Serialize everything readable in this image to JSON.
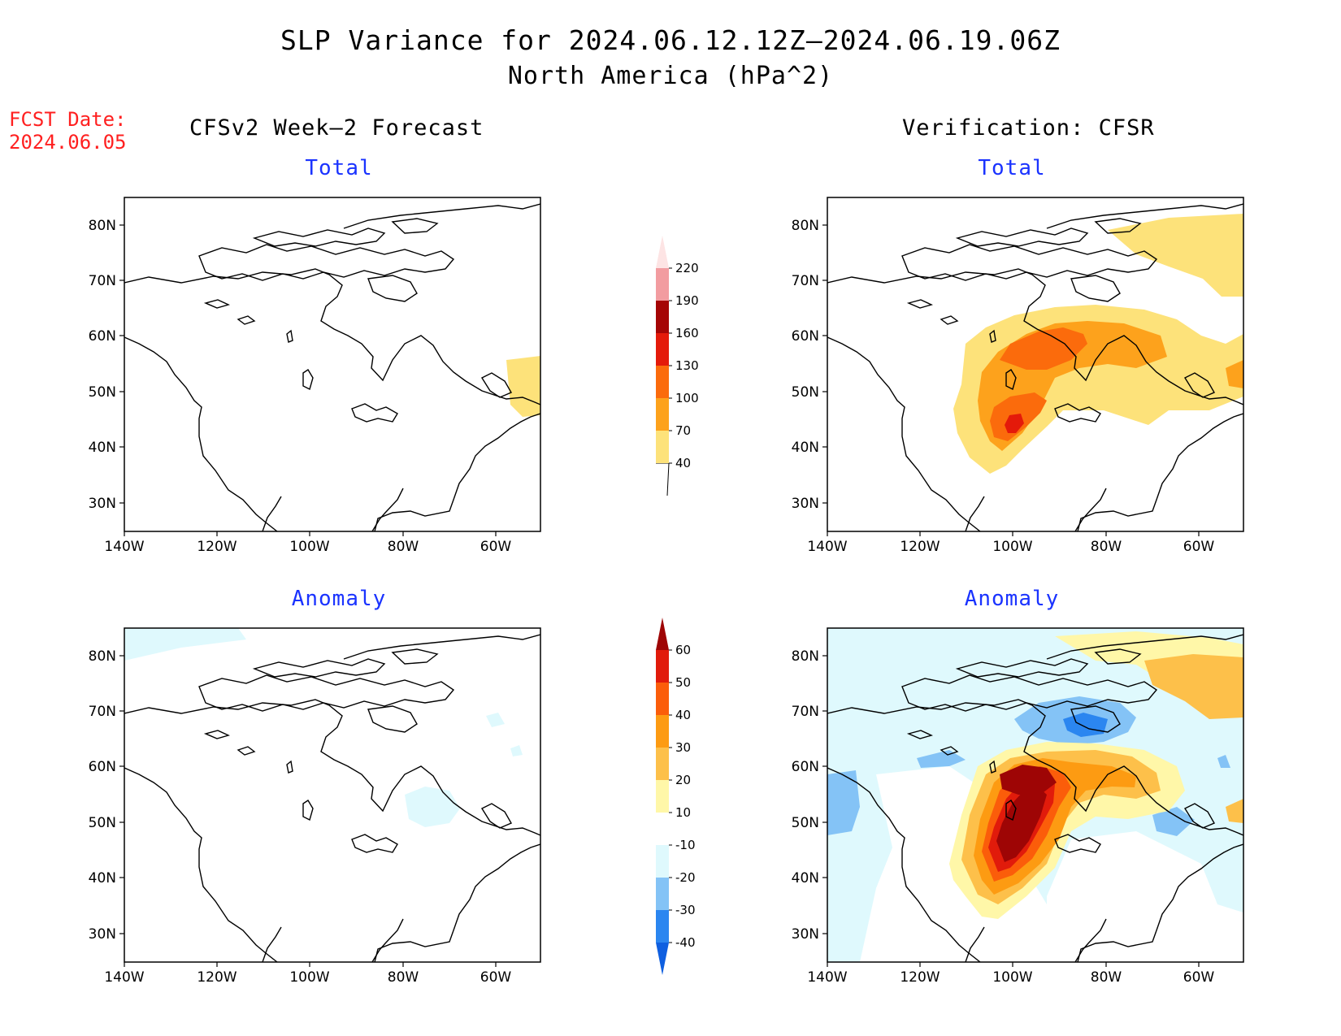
{
  "title": "SLP Variance for 2024.06.12.12Z–2024.06.19.06Z",
  "subtitle": "North America (hPa^2)",
  "fcst_date_label": "FCST Date:",
  "fcst_date_value": "2024.06.05",
  "columns": {
    "left": "CFSv2 Week–2 Forecast",
    "right": "Verification: CFSR"
  },
  "panels": {
    "total_label": "Total",
    "anomaly_label": "Anomaly"
  },
  "axes": {
    "lat_ticks": [
      "80N",
      "70N",
      "60N",
      "50N",
      "40N",
      "30N"
    ],
    "lon_ticks": [
      "140W",
      "120W",
      "100W",
      "80W",
      "60W"
    ]
  },
  "total_colorbar": {
    "levels": [
      "40",
      "70",
      "100",
      "130",
      "160",
      "190",
      "220"
    ],
    "colors": [
      "#fde27a",
      "#fda21c",
      "#fb6b0c",
      "#e41a0a",
      "#a50505",
      "#f29ca0",
      "#fde4e4"
    ]
  },
  "anomaly_colorbar": {
    "levels": [
      "-40",
      "-30",
      "-20",
      "-10",
      "10",
      "20",
      "30",
      "40",
      "50",
      "60"
    ],
    "colors": [
      "#0f5fe0",
      "#2b86f0",
      "#84c3f6",
      "#dff9fd",
      "#ffffff",
      "#fff7a8",
      "#fdc04a",
      "#fd9b12",
      "#fb5d0a",
      "#e11b0b",
      "#9e0505"
    ]
  }
}
